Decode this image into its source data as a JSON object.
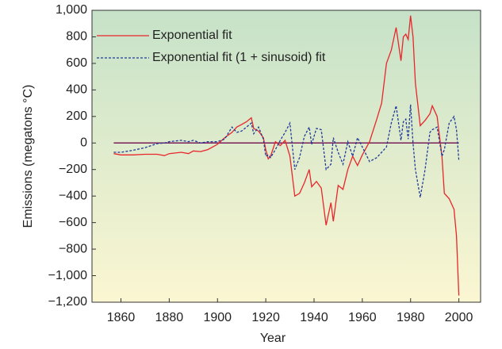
{
  "chart_data": {
    "type": "line",
    "xlabel": "Year",
    "ylabel": "Emissions (megatons °C)",
    "x": [
      1857,
      1860,
      1865,
      1870,
      1875,
      1878,
      1880,
      1885,
      1888,
      1890,
      1893,
      1896,
      1900,
      1903,
      1906,
      1908,
      1910,
      1912,
      1914,
      1915,
      1917,
      1919,
      1920,
      1921,
      1922,
      1924,
      1926,
      1928,
      1930,
      1932,
      1934,
      1936,
      1938,
      1939,
      1941,
      1943,
      1945,
      1947,
      1948,
      1950,
      1952,
      1954,
      1956,
      1958,
      1960,
      1963,
      1966,
      1968,
      1970,
      1972,
      1974,
      1976,
      1977,
      1978,
      1979,
      1980,
      1981,
      1982,
      1984,
      1986,
      1988,
      1989,
      1991,
      1993,
      1994,
      1996,
      1998,
      1999,
      2000
    ],
    "series": [
      {
        "name": "Exponential fit",
        "color": "#e8262b",
        "dash": false,
        "values": [
          -80,
          -90,
          -90,
          -85,
          -85,
          -95,
          -80,
          -70,
          -80,
          -60,
          -65,
          -50,
          -10,
          40,
          80,
          120,
          140,
          160,
          190,
          110,
          90,
          40,
          -50,
          -120,
          -100,
          10,
          -20,
          20,
          -100,
          -400,
          -380,
          -300,
          -200,
          -330,
          -290,
          -340,
          -620,
          -450,
          -590,
          -320,
          -350,
          -200,
          -100,
          -170,
          -90,
          10,
          180,
          300,
          600,
          700,
          870,
          620,
          800,
          820,
          780,
          960,
          800,
          450,
          130,
          170,
          220,
          280,
          200,
          -100,
          -380,
          -420,
          -500,
          -700,
          -1150
        ]
      },
      {
        "name": "Exponential fit (1 + sinusoid) fit",
        "color": "#1f3a9a",
        "dash": true,
        "values": [
          -70,
          -70,
          -55,
          -35,
          -5,
          0,
          10,
          20,
          10,
          20,
          0,
          10,
          10,
          30,
          120,
          80,
          90,
          120,
          150,
          70,
          120,
          30,
          -100,
          -90,
          -110,
          -50,
          20,
          80,
          150,
          -200,
          -110,
          50,
          120,
          -10,
          110,
          100,
          -200,
          -160,
          40,
          -70,
          -160,
          10,
          -100,
          40,
          -30,
          -140,
          -110,
          -70,
          -30,
          150,
          280,
          20,
          160,
          180,
          30,
          290,
          0,
          -200,
          -410,
          -200,
          80,
          100,
          120,
          -100,
          -50,
          150,
          200,
          100,
          -130
        ]
      }
    ],
    "xlim": [
      1848,
      2009
    ],
    "xticks": [
      1860,
      1880,
      1900,
      1920,
      1940,
      1960,
      1980,
      2000
    ],
    "ylim": [
      -1200,
      1000
    ],
    "yticks": [
      {
        "value": 1000,
        "label": "1,000"
      },
      800,
      600,
      400,
      200,
      0,
      {
        "value": -200,
        "label": "−200"
      },
      {
        "value": -400,
        "label": "−400"
      },
      {
        "value": -600,
        "label": "−600"
      },
      {
        "value": -800,
        "label": "−800"
      },
      {
        "value": -1000,
        "label": "−1,000"
      },
      {
        "value": -1200,
        "label": "−1,200"
      }
    ],
    "legend": "upper left",
    "grid": false
  }
}
